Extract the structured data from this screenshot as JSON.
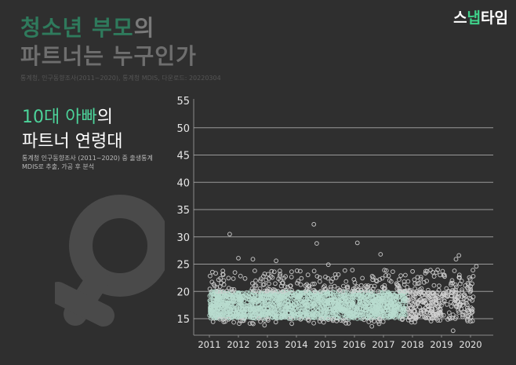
{
  "header": {
    "title_line1_green": "청소년 부모",
    "title_line1_rest": "의",
    "title_line2": "파트너는 누구인가",
    "source": "통계청, 인구동향조사(2011~2020), 통계청 MDIS, 다운로드: 20220304"
  },
  "logo": {
    "part1": "스",
    "part2": "냅",
    "part3": "타임"
  },
  "section": {
    "heading_green": "10대 아빠",
    "heading_rest": "의",
    "heading_line2": "파트너 연령대",
    "note_line1": "통계청 인구동향조사 (2011~2020) 중 출생통계",
    "note_line2": "MDIS로 추출, 가공 후 분석"
  },
  "icon": {
    "name": "female-symbol-icon",
    "color": "#4a4a4a"
  },
  "colors": {
    "accent_green": "#4cd39a",
    "dense_points": "#b8dccf",
    "outline_points": "#cfcfcf",
    "grid": "#bdbdbd"
  },
  "chart_data": {
    "type": "scatter",
    "title": "10대 아빠의 파트너 연령대",
    "xlabel": "",
    "ylabel": "",
    "x_ticks": [
      "2011",
      "2012",
      "2013",
      "2014",
      "2015",
      "2016",
      "2017",
      "2018",
      "2019",
      "2020"
    ],
    "y_ticks": [
      15,
      20,
      25,
      30,
      35,
      40,
      45,
      50,
      55
    ],
    "ylim": [
      12,
      55
    ],
    "xlim": [
      2010.9,
      2020.7
    ],
    "grid": "horizontal",
    "legend": null,
    "description": "Each point is a birth record: partner (mother) age vs birth date. Dense band roughly 15-20 years throughout 2011-2020, thinning after 2018.",
    "dense_band": {
      "x_range": [
        2011.0,
        2020.1
      ],
      "y_range": [
        15,
        20
      ]
    },
    "outliers": [
      {
        "x": 2011.7,
        "y": 30.5
      },
      {
        "x": 2012.0,
        "y": 26.1
      },
      {
        "x": 2012.5,
        "y": 25.9
      },
      {
        "x": 2013.3,
        "y": 25.6
      },
      {
        "x": 2014.6,
        "y": 32.3
      },
      {
        "x": 2014.7,
        "y": 28.8
      },
      {
        "x": 2015.1,
        "y": 24.9
      },
      {
        "x": 2016.1,
        "y": 28.9
      },
      {
        "x": 2016.9,
        "y": 26.8
      },
      {
        "x": 2019.6,
        "y": 26.6
      },
      {
        "x": 2019.5,
        "y": 25.9
      },
      {
        "x": 2020.2,
        "y": 24.6
      },
      {
        "x": 2017.1,
        "y": 23.8
      },
      {
        "x": 2018.7,
        "y": 23.5
      },
      {
        "x": 2019.1,
        "y": 23.0
      },
      {
        "x": 2012.9,
        "y": 13.8
      },
      {
        "x": 2016.6,
        "y": 13.6
      },
      {
        "x": 2019.4,
        "y": 12.8
      },
      {
        "x": 2020.0,
        "y": 14.5
      }
    ]
  }
}
